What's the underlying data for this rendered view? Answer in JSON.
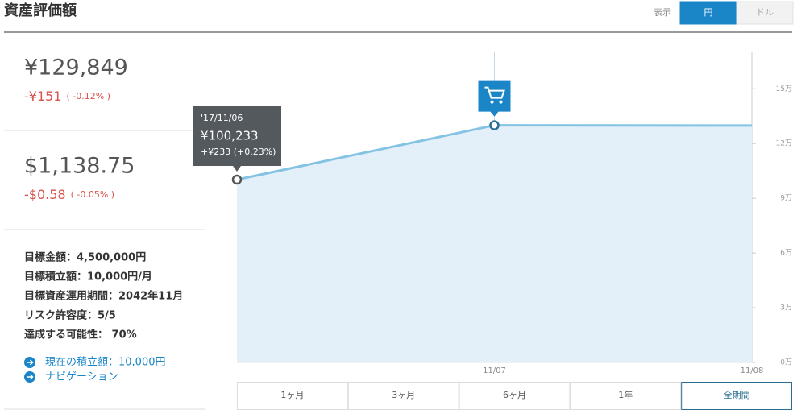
{
  "header": {
    "title": "資産評価額",
    "display_label": "表示",
    "currency_options": [
      "円",
      "ドル"
    ],
    "active_currency": "円"
  },
  "summary": {
    "jpy": {
      "value": "¥129,849",
      "change": "-¥151",
      "change_pct": "( -0.12% )"
    },
    "usd": {
      "value": "$1,138.75",
      "change": "-$0.58",
      "change_pct": "( -0.05% )"
    }
  },
  "goals": [
    "目標金額：4,500,000円",
    "目標積立額：10,000円/月",
    "目標資産運用期間：2042年11月",
    "リスク許容度：5/5",
    "達成する可能性： 70%"
  ],
  "links": [
    "現在の積立額：10,000円",
    "ナビゲーション"
  ],
  "chart_data": {
    "type": "area",
    "categories": [
      null,
      "11/07",
      "11/08"
    ],
    "values": [
      100233,
      130000,
      129849
    ],
    "color": "#84c3e3",
    "fill_color": "#e3f0f9",
    "ylim": [
      0,
      170000
    ],
    "yticks": [
      {
        "value": 0,
        "label": "0万"
      },
      {
        "value": 30000,
        "label": "3万"
      },
      {
        "value": 60000,
        "label": "6万"
      },
      {
        "value": 90000,
        "label": "9万"
      },
      {
        "value": 120000,
        "label": "12万"
      },
      {
        "value": 150000,
        "label": "15万"
      }
    ],
    "tooltip": {
      "date": "'17/11/06",
      "value": "¥100,233",
      "change": "+¥233 (+0.23%)"
    }
  },
  "periods": [
    "1ヶ月",
    "3ヶ月",
    "6ヶ月",
    "1年",
    "全期間"
  ],
  "active_period": "全期間"
}
